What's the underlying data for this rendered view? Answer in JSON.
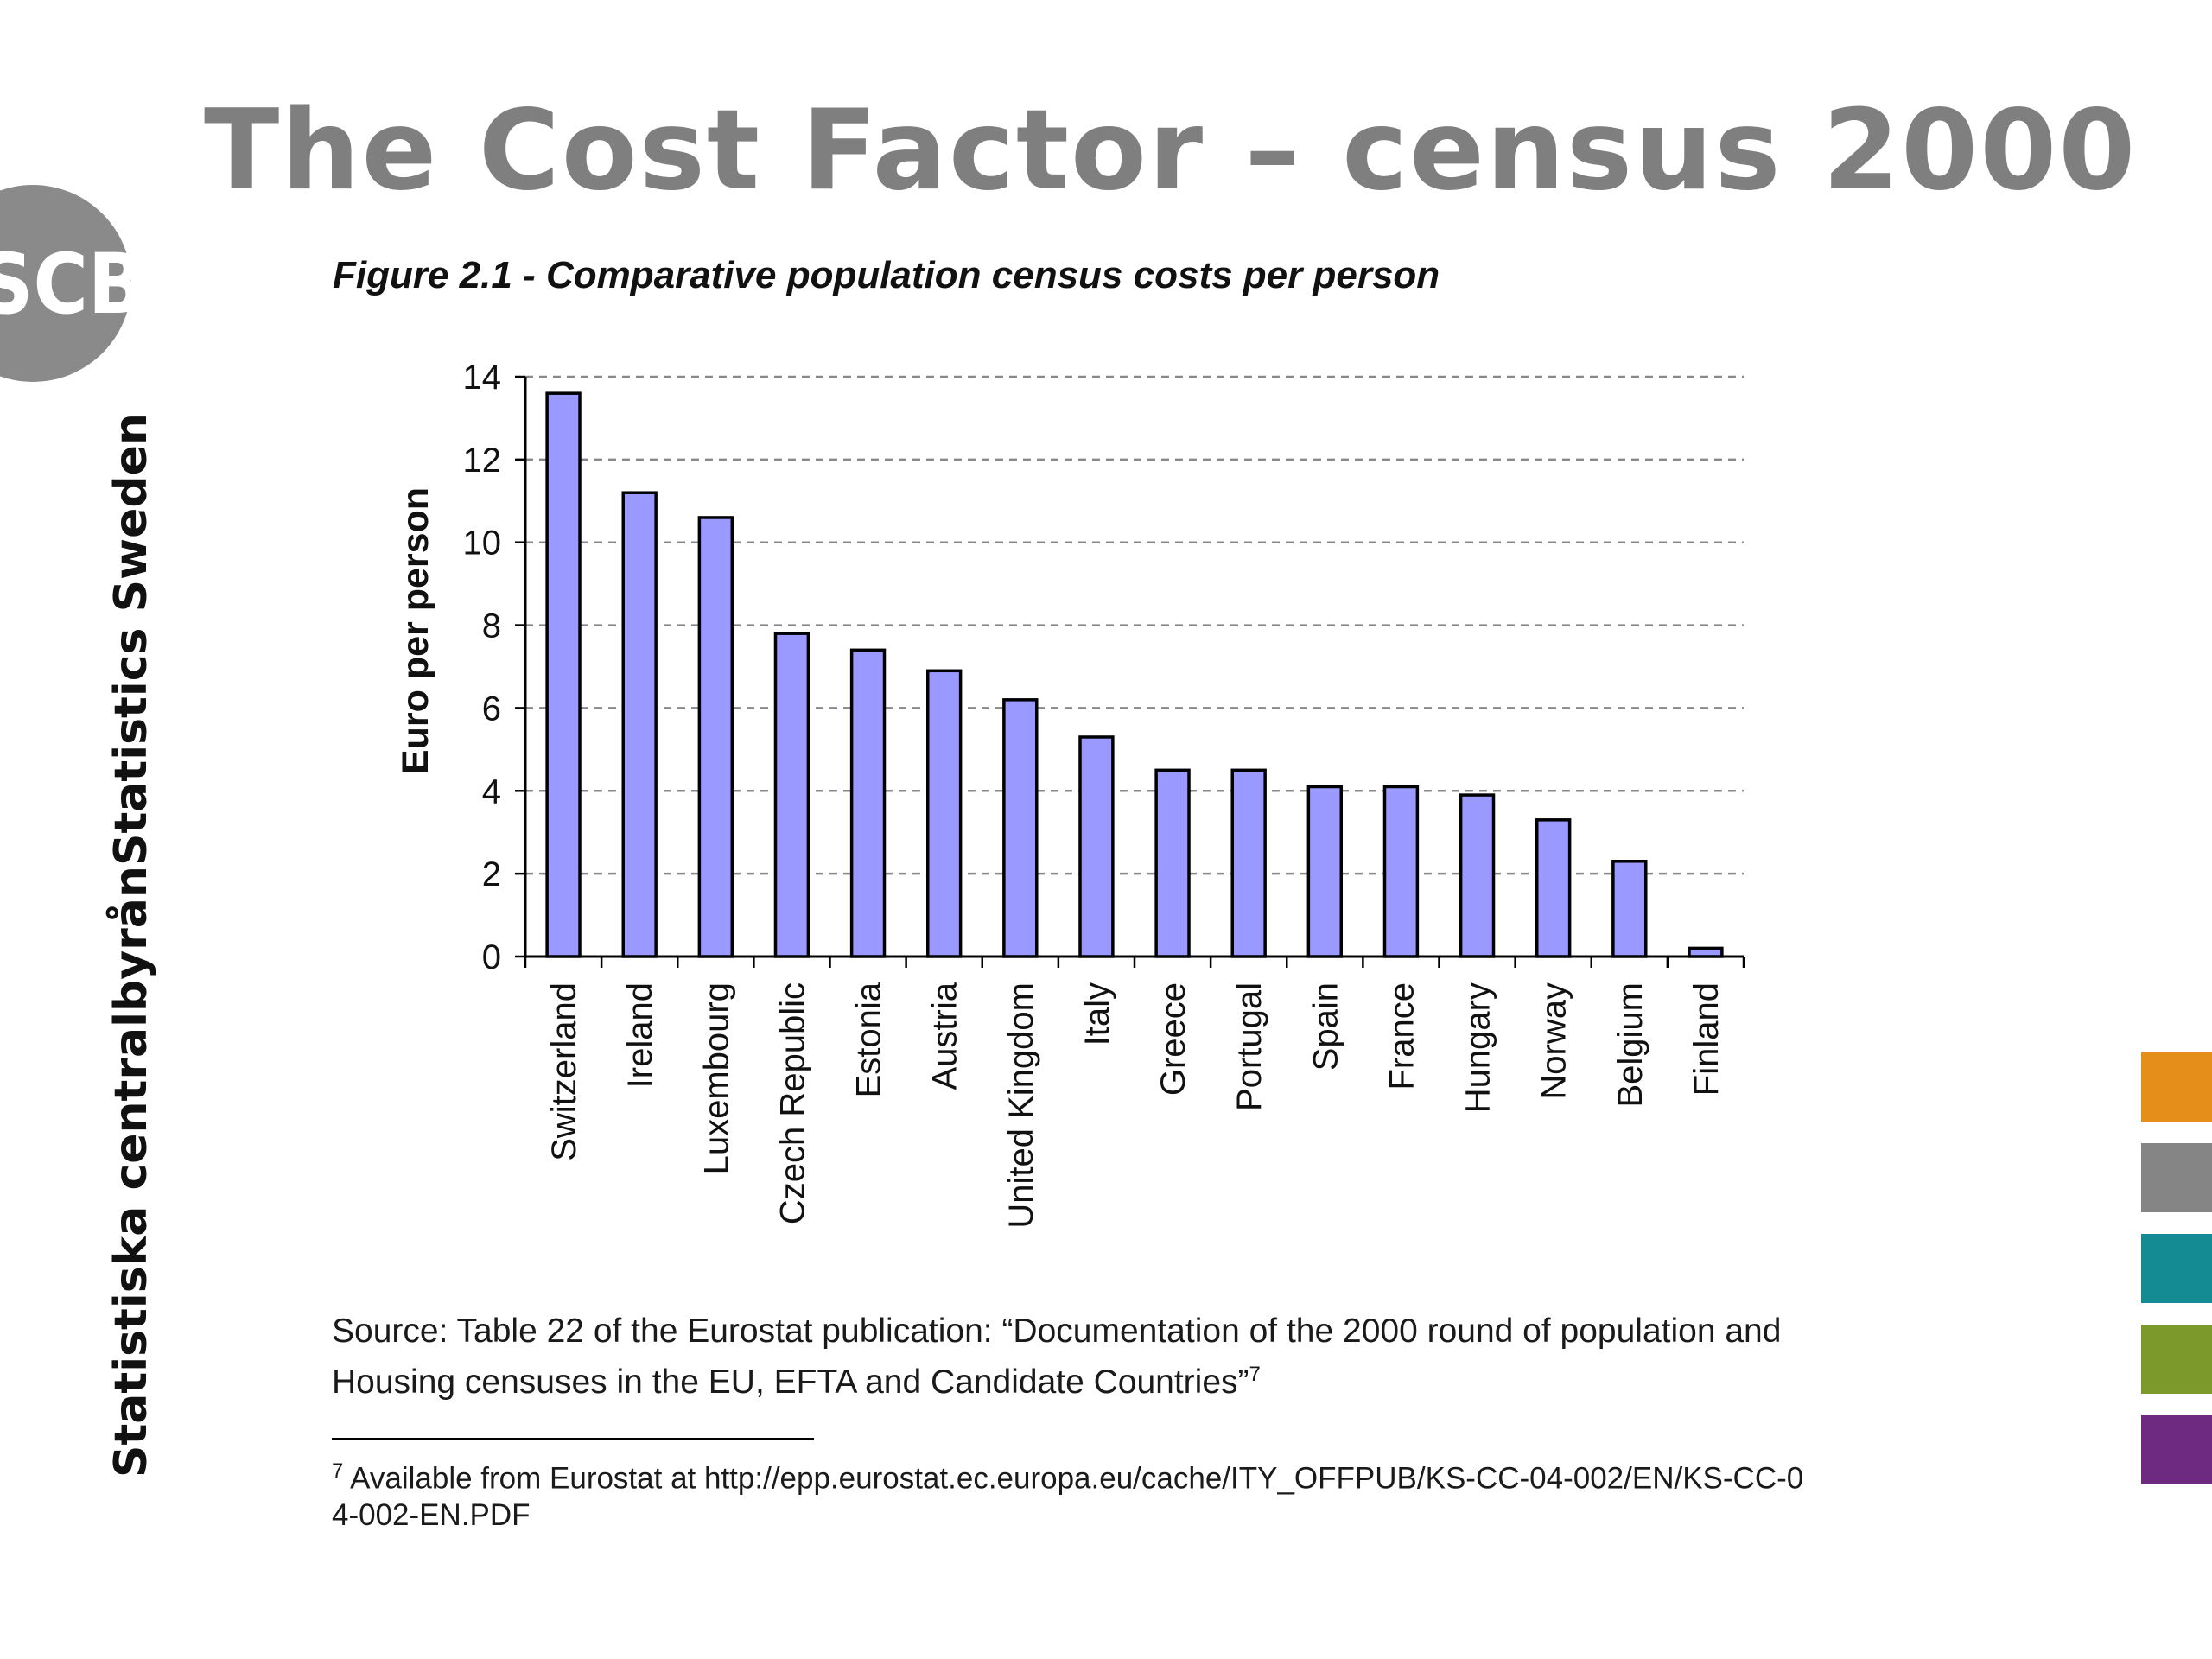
{
  "slide": {
    "title": "The Cost Factor – census 2000",
    "brand_en": "Statistics Sweden",
    "brand_sv": "Statistiska centralbyrån",
    "logo_text": "SCB",
    "figure_caption": "Figure 2.1 - Comparative population census costs per person",
    "source_text": "Source: Table 22 of the Eurostat publication: “Documentation of the 2000 round of population and Housing censuses in the EU, EFTA and Candidate Countries”",
    "source_footnote_marker": "7",
    "footnote_marker": "7",
    "footnote_text": "Available from Eurostat at http://epp.eurostat.ec.europa.eu/cache/ITY_OFFPUB/KS-CC-04-002/EN/KS-CC-04-002-EN.PDF",
    "tab_colors": [
      "#e58e1a",
      "#858585",
      "#148a93",
      "#7b9a2b",
      "#6e2a80"
    ]
  },
  "chart_data": {
    "type": "bar",
    "title": "",
    "xlabel": "",
    "ylabel": "Euro per person",
    "ylim": [
      0,
      14
    ],
    "yticks": [
      0,
      2,
      4,
      6,
      8,
      10,
      12,
      14
    ],
    "grid": "horizontal dashed",
    "bar_color": "#9999ff",
    "categories": [
      "Switzerland",
      "Ireland",
      "Luxembourg",
      "Czech Republic",
      "Estonia",
      "Austria",
      "United Kingdom",
      "Italy",
      "Greece",
      "Portugal",
      "Spain",
      "France",
      "Hungary",
      "Norway",
      "Belgium",
      "Finland"
    ],
    "values": [
      13.6,
      11.2,
      10.6,
      7.8,
      7.4,
      6.9,
      6.2,
      5.3,
      4.5,
      4.5,
      4.1,
      4.1,
      3.9,
      3.3,
      2.3,
      0.2
    ]
  }
}
